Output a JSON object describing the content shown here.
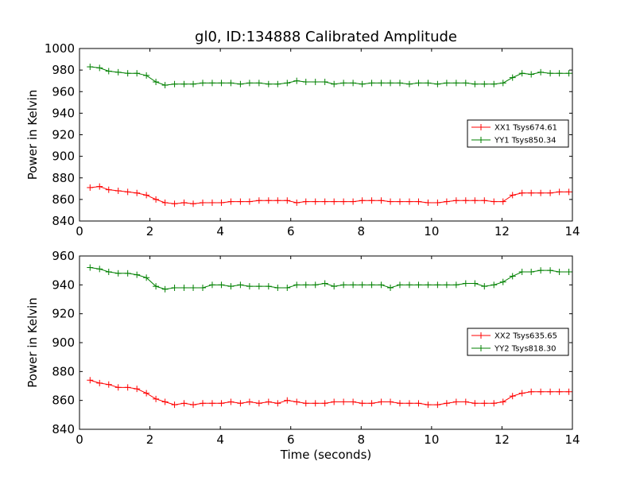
{
  "title": "gl0, ID:134888 Calibrated Amplitude",
  "chart_data": [
    {
      "type": "line",
      "ylabel": "Power in Kelvin",
      "xlabel": "",
      "xlim": [
        0,
        14
      ],
      "ylim": [
        840,
        1000
      ],
      "xticks": [
        0,
        2,
        4,
        6,
        8,
        10,
        12,
        14
      ],
      "yticks": [
        840,
        860,
        880,
        900,
        920,
        940,
        960,
        980,
        1000
      ],
      "legend_position": "center-right",
      "marker": "+",
      "x": [
        0.3,
        0.57,
        0.83,
        1.1,
        1.37,
        1.63,
        1.9,
        2.17,
        2.43,
        2.7,
        2.97,
        3.23,
        3.5,
        3.77,
        4.03,
        4.3,
        4.57,
        4.83,
        5.1,
        5.37,
        5.63,
        5.9,
        6.17,
        6.43,
        6.7,
        6.97,
        7.23,
        7.5,
        7.77,
        8.03,
        8.3,
        8.57,
        8.83,
        9.1,
        9.37,
        9.63,
        9.9,
        10.17,
        10.43,
        10.7,
        10.97,
        11.23,
        11.5,
        11.77,
        12.03,
        12.3,
        12.57,
        12.83,
        13.1,
        13.37,
        13.63,
        13.9
      ],
      "series": [
        {
          "name": "XX1 Tsys674.61",
          "color": "#ff0000",
          "values": [
            871,
            872,
            869,
            868,
            867,
            866,
            864,
            860,
            857,
            856,
            857,
            856,
            857,
            857,
            857,
            858,
            858,
            858,
            859,
            859,
            859,
            859,
            857,
            858,
            858,
            858,
            858,
            858,
            858,
            859,
            859,
            859,
            858,
            858,
            858,
            858,
            857,
            857,
            858,
            859,
            859,
            859,
            859,
            858,
            858,
            864,
            866,
            866,
            866,
            866,
            867,
            867
          ]
        },
        {
          "name": "YY1 Tsys850.34",
          "color": "#008000",
          "values": [
            983,
            982,
            979,
            978,
            977,
            977,
            975,
            969,
            966,
            967,
            967,
            967,
            968,
            968,
            968,
            968,
            967,
            968,
            968,
            967,
            967,
            968,
            970,
            969,
            969,
            969,
            967,
            968,
            968,
            967,
            968,
            968,
            968,
            968,
            967,
            968,
            968,
            967,
            968,
            968,
            968,
            967,
            967,
            967,
            968,
            973,
            977,
            976,
            978,
            977,
            977,
            977
          ]
        }
      ]
    },
    {
      "type": "line",
      "ylabel": "Power in Kelvin",
      "xlabel": "Time (seconds)",
      "xlim": [
        0,
        14
      ],
      "ylim": [
        840,
        960
      ],
      "xticks": [
        0,
        2,
        4,
        6,
        8,
        10,
        12,
        14
      ],
      "yticks": [
        840,
        860,
        880,
        900,
        920,
        940,
        960
      ],
      "legend_position": "center-right",
      "marker": "+",
      "x": [
        0.3,
        0.57,
        0.83,
        1.1,
        1.37,
        1.63,
        1.9,
        2.17,
        2.43,
        2.7,
        2.97,
        3.23,
        3.5,
        3.77,
        4.03,
        4.3,
        4.57,
        4.83,
        5.1,
        5.37,
        5.63,
        5.9,
        6.17,
        6.43,
        6.7,
        6.97,
        7.23,
        7.5,
        7.77,
        8.03,
        8.3,
        8.57,
        8.83,
        9.1,
        9.37,
        9.63,
        9.9,
        10.17,
        10.43,
        10.7,
        10.97,
        11.23,
        11.5,
        11.77,
        12.03,
        12.3,
        12.57,
        12.83,
        13.1,
        13.37,
        13.63,
        13.9
      ],
      "series": [
        {
          "name": "XX2 Tsys635.65",
          "color": "#ff0000",
          "values": [
            874,
            872,
            871,
            869,
            869,
            868,
            865,
            861,
            859,
            857,
            858,
            857,
            858,
            858,
            858,
            859,
            858,
            859,
            858,
            859,
            858,
            860,
            859,
            858,
            858,
            858,
            859,
            859,
            859,
            858,
            858,
            859,
            859,
            858,
            858,
            858,
            857,
            857,
            858,
            859,
            859,
            858,
            858,
            858,
            859,
            863,
            865,
            866,
            866,
            866,
            866,
            866
          ]
        },
        {
          "name": "YY2 Tsys818.30",
          "color": "#008000",
          "values": [
            952,
            951,
            949,
            948,
            948,
            947,
            945,
            939,
            937,
            938,
            938,
            938,
            938,
            940,
            940,
            939,
            940,
            939,
            939,
            939,
            938,
            938,
            940,
            940,
            940,
            941,
            939,
            940,
            940,
            940,
            940,
            940,
            938,
            940,
            940,
            940,
            940,
            940,
            940,
            940,
            941,
            941,
            939,
            940,
            942,
            946,
            949,
            949,
            950,
            950,
            949,
            949
          ]
        }
      ]
    }
  ]
}
